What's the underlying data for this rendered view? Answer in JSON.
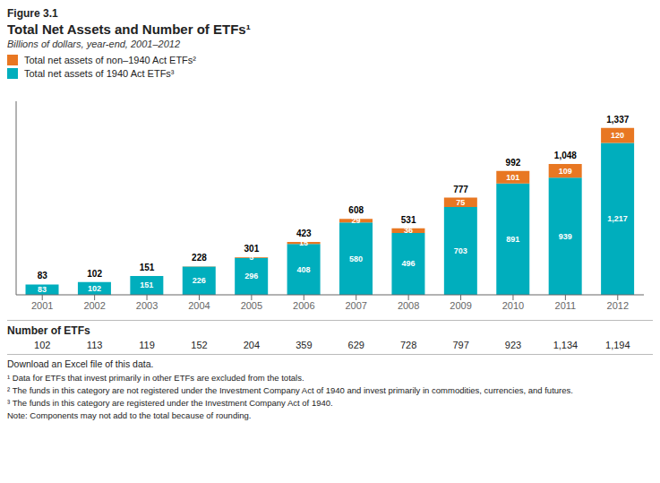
{
  "chart_data": {
    "type": "bar",
    "stacked": true,
    "figure_label": "Figure 3.1",
    "title": "Total Net Assets and Number of ETFs¹",
    "subtitle": "Billions of dollars, year-end, 2001–2012",
    "categories": [
      "2001",
      "2002",
      "2003",
      "2004",
      "2005",
      "2006",
      "2007",
      "2008",
      "2009",
      "2010",
      "2011",
      "2012"
    ],
    "series": [
      {
        "name": "Total net assets of 1940 Act ETFs³",
        "color": "#00AEBD",
        "values": [
          83,
          102,
          151,
          226,
          296,
          408,
          580,
          496,
          703,
          891,
          939,
          1217
        ],
        "value_labels": [
          "83",
          "102",
          "151",
          "226",
          "296",
          "408",
          "580",
          "496",
          "703",
          "891",
          "939",
          "1,217"
        ]
      },
      {
        "name": "Total net assets of non–1940 Act ETFs²",
        "color": "#E87722",
        "values": [
          0,
          0,
          0,
          1,
          5,
          15,
          29,
          36,
          75,
          101,
          109,
          120
        ],
        "value_labels": [
          null,
          null,
          null,
          null,
          "5",
          "15",
          "29",
          "36",
          "75",
          "101",
          "109",
          "120"
        ]
      }
    ],
    "totals": {
      "values": [
        83,
        102,
        151,
        228,
        301,
        423,
        608,
        531,
        777,
        992,
        1048,
        1337
      ],
      "value_labels": [
        "83",
        "102",
        "151",
        "228",
        "301",
        "423",
        "608",
        "531",
        "777",
        "992",
        "1,048",
        "1,337"
      ]
    },
    "ylim": [
      0,
      1550
    ],
    "data_labels": true,
    "tick_labels": "x",
    "grid": false,
    "legend": "upper left",
    "table": {
      "label": "Number of ETFs",
      "values": [
        102,
        113,
        119,
        152,
        204,
        359,
        629,
        728,
        797,
        923,
        1134,
        1194
      ],
      "value_labels": [
        "102",
        "113",
        "119",
        "152",
        "204",
        "359",
        "629",
        "728",
        "797",
        "923",
        "1,134",
        "1,194"
      ]
    },
    "annotations": [
      "Download an Excel file of this data."
    ],
    "footnotes": [
      "¹ Data for ETFs that invest primarily in other ETFs are excluded from the totals.",
      "² The funds in this category are not registered under the Investment Company Act of 1940 and invest primarily in commodities, currencies, and futures.",
      "³ The funds in this category are registered under the Investment Company Act of 1940.",
      "Note: Components may not add to the total because of rounding."
    ]
  }
}
